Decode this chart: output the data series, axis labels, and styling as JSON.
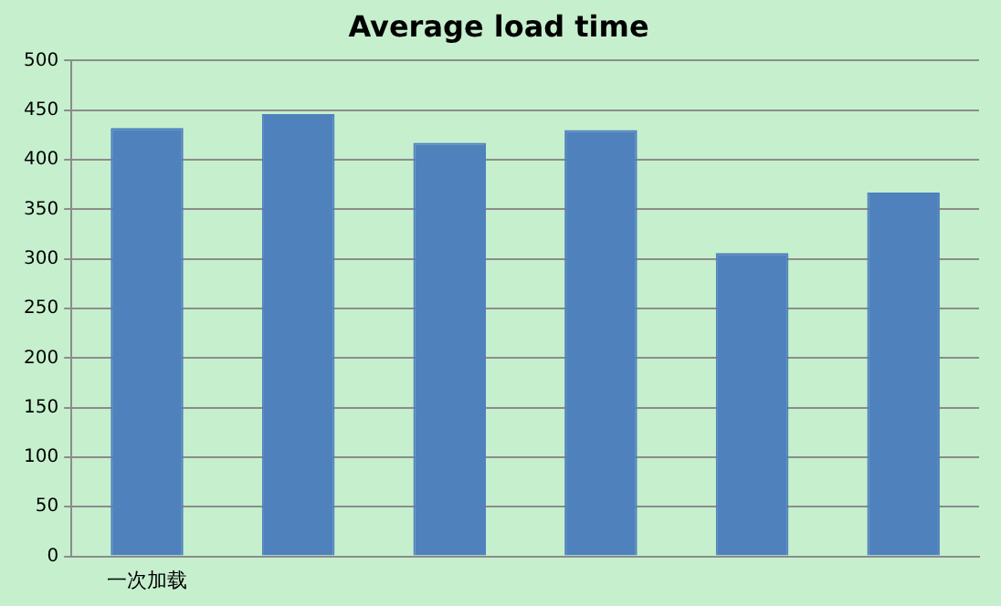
{
  "chart_data": {
    "type": "bar",
    "title": "Average load time",
    "categories": [
      "一次加载",
      null,
      null,
      null,
      null,
      null
    ],
    "values": [
      432,
      446,
      417,
      430,
      306,
      367
    ],
    "color": "#4f81bd",
    "ylim": [
      0,
      500
    ],
    "yticks": [
      0,
      50,
      100,
      150,
      200,
      250,
      300,
      350,
      400,
      450,
      500
    ],
    "grid": "y",
    "legend": false
  }
}
